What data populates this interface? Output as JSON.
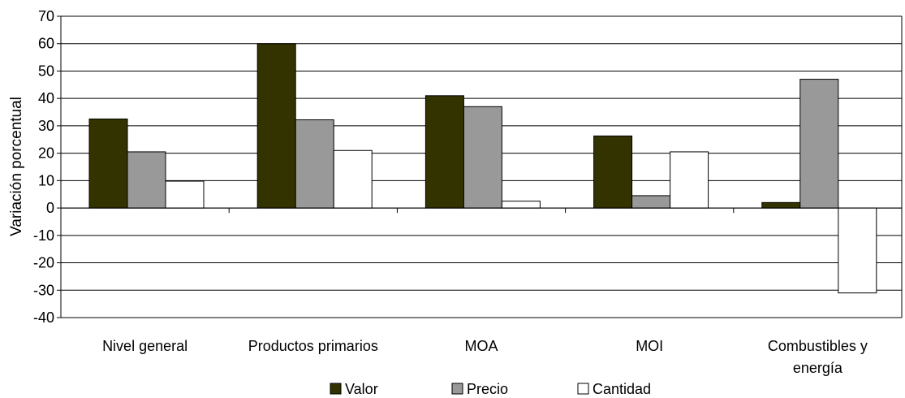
{
  "chart_data": {
    "type": "bar",
    "title": "",
    "xlabel": "",
    "ylabel": "Variación porcentual",
    "ylim": [
      -40,
      70
    ],
    "ytick_step": 10,
    "grid": true,
    "legend_position": "bottom",
    "categories": [
      [
        "Nivel general"
      ],
      [
        "Productos primarios"
      ],
      [
        "MOA"
      ],
      [
        "MOI"
      ],
      [
        "Combustibles y",
        "energía"
      ]
    ],
    "series": [
      {
        "name": "Valor",
        "color": "#333300",
        "values": [
          32.5,
          60,
          41,
          26.3,
          2
        ]
      },
      {
        "name": "Precio",
        "color": "#999999",
        "values": [
          20.5,
          32.2,
          37,
          4.5,
          47
        ]
      },
      {
        "name": "Cantidad",
        "color": "#ffffff",
        "values": [
          9.8,
          21,
          2.5,
          20.5,
          -31
        ]
      }
    ]
  }
}
